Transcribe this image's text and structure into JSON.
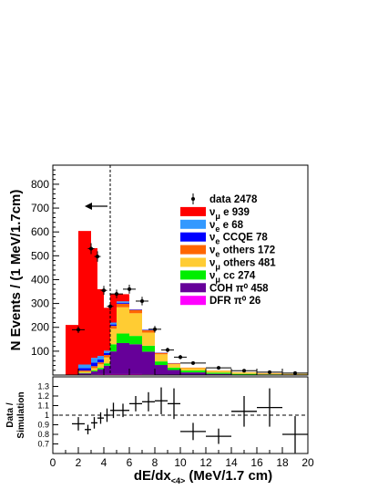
{
  "chart_data": [
    {
      "type": "bar",
      "stacked": true,
      "ylabel": "N Events / (1 MeV/1.7cm)",
      "xlim": [
        0,
        20
      ],
      "ylim": [
        0,
        880
      ],
      "yticks": [
        100,
        200,
        300,
        400,
        500,
        600,
        700,
        800
      ],
      "bin_edges": [
        0,
        1,
        2,
        3,
        3.5,
        4,
        4.5,
        5,
        6,
        7,
        8,
        9,
        10,
        12,
        14,
        16,
        18,
        20
      ],
      "legend_placement": "right",
      "legend": [
        {
          "marker": "point",
          "label": "data",
          "count": "2478"
        },
        {
          "label": "ν_μ e",
          "count": "939",
          "color": "#ff0000"
        },
        {
          "label": "ν_e e",
          "count": "68",
          "color": "#3399ff"
        },
        {
          "label": "ν_e CCQE",
          "count": "78",
          "color": "#0000ff"
        },
        {
          "label": "ν_e others",
          "count": "172",
          "color": "#ff6600"
        },
        {
          "label": "ν_μ others",
          "count": "481",
          "color": "#ffcc33"
        },
        {
          "label": "ν_μ cc",
          "count": "274",
          "color": "#00ee00"
        },
        {
          "label": "COH π⁰",
          "count": "458",
          "color": "#660099"
        },
        {
          "label": "DFR π⁰",
          "count": "26",
          "color": "#ff00ff"
        }
      ],
      "series": [
        {
          "name": "DFR π⁰",
          "values": [
            0,
            0,
            2,
            3,
            4,
            4,
            4,
            4,
            4,
            3,
            2,
            1,
            1,
            0,
            0,
            0,
            0
          ]
        },
        {
          "name": "COH π⁰",
          "values": [
            0,
            0,
            5,
            12,
            20,
            35,
            95,
            130,
            125,
            95,
            40,
            20,
            10,
            5,
            2,
            1,
            0
          ]
        },
        {
          "name": "ν_μ cc",
          "values": [
            0,
            0,
            2,
            4,
            6,
            10,
            30,
            40,
            35,
            25,
            15,
            10,
            8,
            5,
            3,
            2,
            2
          ]
        },
        {
          "name": "ν_μ others",
          "values": [
            0,
            0,
            5,
            10,
            15,
            25,
            65,
            110,
            95,
            55,
            30,
            15,
            10,
            8,
            6,
            4,
            3
          ]
        },
        {
          "name": "ν_e others",
          "values": [
            0,
            0,
            5,
            8,
            8,
            10,
            12,
            15,
            14,
            10,
            6,
            3,
            2,
            1,
            1,
            1,
            0
          ]
        },
        {
          "name": "ν_e CCQE",
          "values": [
            0,
            0,
            10,
            15,
            12,
            8,
            6,
            4,
            2,
            2,
            1,
            1,
            0,
            0,
            0,
            0,
            0
          ]
        },
        {
          "name": "ν_e e",
          "values": [
            0,
            0,
            15,
            20,
            15,
            10,
            8,
            6,
            0,
            0,
            0,
            0,
            0,
            0,
            0,
            0,
            0
          ]
        },
        {
          "name": "ν_μ e",
          "values": [
            0,
            210,
            560,
            460,
            280,
            180,
            120,
            30,
            0,
            0,
            0,
            0,
            0,
            0,
            0,
            0,
            0
          ]
        }
      ],
      "data_points": [
        {
          "x": 2.0,
          "y": 190,
          "xerr": 0.5,
          "yerr": 14
        },
        {
          "x": 3.0,
          "y": 530,
          "xerr": 0.25,
          "yerr": 23
        },
        {
          "x": 3.5,
          "y": 497,
          "xerr": 0.25,
          "yerr": 22
        },
        {
          "x": 4.0,
          "y": 355,
          "xerr": 0.25,
          "yerr": 19
        },
        {
          "x": 4.5,
          "y": 288,
          "xerr": 0.25,
          "yerr": 17
        },
        {
          "x": 5.0,
          "y": 340,
          "xerr": 0.5,
          "yerr": 18
        },
        {
          "x": 6.0,
          "y": 360,
          "xerr": 0.5,
          "yerr": 19
        },
        {
          "x": 7.0,
          "y": 310,
          "xerr": 0.5,
          "yerr": 18
        },
        {
          "x": 8.0,
          "y": 192,
          "xerr": 0.5,
          "yerr": 14
        },
        {
          "x": 9.0,
          "y": 105,
          "xerr": 0.5,
          "yerr": 10
        },
        {
          "x": 10.0,
          "y": 75,
          "xerr": 0.5,
          "yerr": 9
        },
        {
          "x": 11.0,
          "y": 50,
          "xerr": 1,
          "yerr": 7
        },
        {
          "x": 13.0,
          "y": 30,
          "xerr": 1,
          "yerr": 5
        },
        {
          "x": 15.0,
          "y": 18,
          "xerr": 1,
          "yerr": 4
        },
        {
          "x": 17.0,
          "y": 12,
          "xerr": 1,
          "yerr": 3
        },
        {
          "x": 19.0,
          "y": 8,
          "xerr": 1,
          "yerr": 3
        }
      ],
      "cut_line": {
        "x": 4.5,
        "direction": "left"
      }
    },
    {
      "type": "scatter",
      "xlabel": "dE/dx",
      "xlabel_sub": "<4>",
      "xlabel_units": "(MeV/1.7 cm)",
      "ylabel_line1": "Data /",
      "ylabel_line2": "Simulation",
      "xlim": [
        0,
        20
      ],
      "ylim": [
        0.6,
        1.4
      ],
      "xticks": [
        0,
        2,
        4,
        6,
        8,
        10,
        12,
        14,
        16,
        18,
        20
      ],
      "yticks": [
        "0.7",
        "0.8",
        "0.9",
        "1",
        "1.1",
        "1.2",
        "1.3"
      ],
      "reference_line": 1.0,
      "points": [
        {
          "x": 2.0,
          "y": 0.91,
          "xerr": 0.5,
          "yerr": 0.07
        },
        {
          "x": 2.75,
          "y": 0.85,
          "xerr": 0.25,
          "yerr": 0.05
        },
        {
          "x": 3.25,
          "y": 0.92,
          "xerr": 0.25,
          "yerr": 0.06
        },
        {
          "x": 3.75,
          "y": 0.97,
          "xerr": 0.25,
          "yerr": 0.06
        },
        {
          "x": 4.25,
          "y": 1.0,
          "xerr": 0.25,
          "yerr": 0.07
        },
        {
          "x": 4.75,
          "y": 1.05,
          "xerr": 0.25,
          "yerr": 0.08
        },
        {
          "x": 5.5,
          "y": 1.05,
          "xerr": 0.5,
          "yerr": 0.07
        },
        {
          "x": 6.5,
          "y": 1.12,
          "xerr": 0.5,
          "yerr": 0.08
        },
        {
          "x": 7.5,
          "y": 1.14,
          "xerr": 0.5,
          "yerr": 0.1
        },
        {
          "x": 8.5,
          "y": 1.15,
          "xerr": 0.5,
          "yerr": 0.14
        },
        {
          "x": 9.5,
          "y": 1.12,
          "xerr": 0.5,
          "yerr": 0.16
        },
        {
          "x": 11.0,
          "y": 0.83,
          "xerr": 1,
          "yerr": 0.09
        },
        {
          "x": 13.0,
          "y": 0.78,
          "xerr": 1,
          "yerr": 0.08
        },
        {
          "x": 15.0,
          "y": 1.04,
          "xerr": 1,
          "yerr": 0.16
        },
        {
          "x": 17.0,
          "y": 1.08,
          "xerr": 1,
          "yerr": 0.2
        },
        {
          "x": 19.0,
          "y": 0.8,
          "xerr": 1,
          "yerr": 0.19
        }
      ]
    }
  ]
}
